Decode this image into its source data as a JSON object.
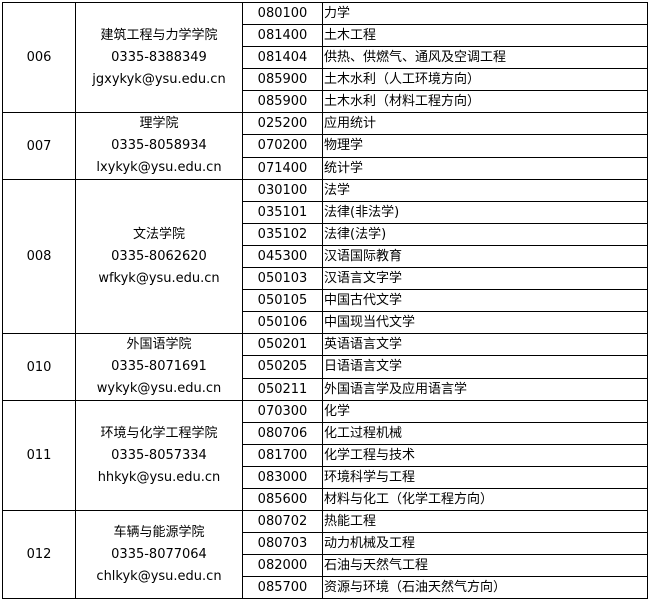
{
  "groups": [
    {
      "code": "006",
      "college": "建筑工程与力学学院",
      "phone": "0335-8388349",
      "email": "jgxykyk@ysu.edu.cn",
      "majors": [
        [
          "080100",
          "力学"
        ],
        [
          "081400",
          "土木工程"
        ],
        [
          "081404",
          "供热、供燃气、通风及空调工程"
        ],
        [
          "085900",
          "土木水利（人工环境方向）"
        ],
        [
          "085900",
          "土木水利（材料工程方向）"
        ]
      ]
    },
    {
      "code": "007",
      "college": "理学院",
      "phone": "0335-8058934",
      "email": "lxykyk@ysu.edu.cn",
      "majors": [
        [
          "025200",
          "应用统计"
        ],
        [
          "070200",
          "物理学"
        ],
        [
          "071400",
          "统计学"
        ]
      ]
    },
    {
      "code": "008",
      "college": "文法学院",
      "phone": "0335-8062620",
      "email": "wfkyk@ysu.edu.cn",
      "majors": [
        [
          "030100",
          "法学"
        ],
        [
          "035101",
          "法律(非法学)"
        ],
        [
          "035102",
          "法律(法学)"
        ],
        [
          "045300",
          "汉语国际教育"
        ],
        [
          "050103",
          "汉语言文字学"
        ],
        [
          "050105",
          "中国古代文学"
        ],
        [
          "050106",
          "中国现当代文学"
        ]
      ]
    },
    {
      "code": "010",
      "college": "外国语学院",
      "phone": "0335-8071691",
      "email": "wykyk@ysu.edu.cn",
      "majors": [
        [
          "050201",
          "英语语言文学"
        ],
        [
          "050205",
          "日语语言文学"
        ],
        [
          "050211",
          "外国语言学及应用语言学"
        ]
      ]
    },
    {
      "code": "011",
      "college": "环境与化学工程学院",
      "phone": "0335-8057334",
      "email": "hhkyk@ysu.edu.cn",
      "majors": [
        [
          "070300",
          "化学"
        ],
        [
          "080706",
          "化工过程机械"
        ],
        [
          "081700",
          "化学工程与技术"
        ],
        [
          "083000",
          "环境科学与工程"
        ],
        [
          "085600",
          "材料与化工（化学工程方向）"
        ]
      ]
    },
    {
      "code": "012",
      "college": "车辆与能源学院",
      "phone": "0335-8077064",
      "email": "chlkyk@ysu.edu.cn",
      "majors": [
        [
          "080702",
          "热能工程"
        ],
        [
          "080703",
          "动力机械及工程"
        ],
        [
          "082000",
          "石油与天然气工程"
        ],
        [
          "085700",
          "资源与环境（石油天然气方向）"
        ]
      ]
    }
  ]
}
